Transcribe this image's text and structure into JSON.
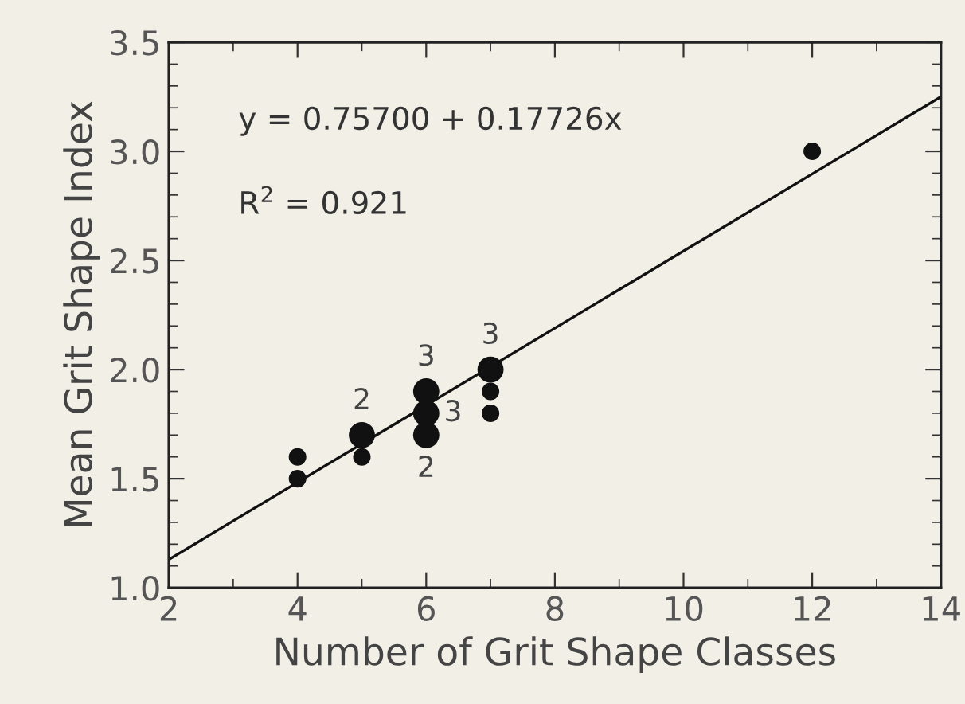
{
  "chart_data": {
    "type": "bubble",
    "xlabel": "Number of Grit Shape Classes",
    "ylabel": "Mean Grit Shape Index",
    "xlim": [
      2,
      14
    ],
    "xticks": [
      2,
      4,
      6,
      8,
      10,
      12,
      14
    ],
    "ylim": [
      1.0,
      3.5
    ],
    "yticks": [
      {
        "value": 1.0,
        "label": "1.0"
      },
      {
        "value": 1.5,
        "label": "1.5"
      },
      {
        "value": 2.0,
        "label": "2.0"
      },
      {
        "value": 2.5,
        "label": "2.5"
      },
      {
        "value": 3.0,
        "label": "3.0"
      },
      {
        "value": 3.5,
        "label": "3.5"
      }
    ],
    "grid": false,
    "series": [
      {
        "color": "#111111",
        "x": [
          4,
          4,
          5,
          5,
          6,
          6,
          6,
          7,
          7,
          7,
          12
        ],
        "values": [
          1.6,
          1.5,
          1.7,
          1.6,
          1.9,
          1.8,
          1.7,
          2.0,
          1.9,
          1.8,
          3.0
        ],
        "sizes": [
          0.45,
          0.45,
          1,
          0.45,
          1,
          1,
          1,
          1,
          0.45,
          0.45,
          0.45
        ]
      },
      {
        "type": "line",
        "color": "#111111",
        "x": [
          2,
          14
        ],
        "values": [
          1.13,
          3.25
        ]
      }
    ],
    "annotations": [
      "y = 0.75700 + 0.17726x",
      "R$^{2}$ = 0.921",
      {
        "text": "2",
        "x": 5,
        "y": 1.7
      },
      {
        "text": "3",
        "x": 6,
        "y": 1.9
      },
      {
        "text": "3",
        "x": 6,
        "y": 1.8
      },
      {
        "text": "2",
        "x": 6,
        "y": 1.7
      },
      {
        "text": "3",
        "x": 7,
        "y": 2.0
      }
    ]
  }
}
